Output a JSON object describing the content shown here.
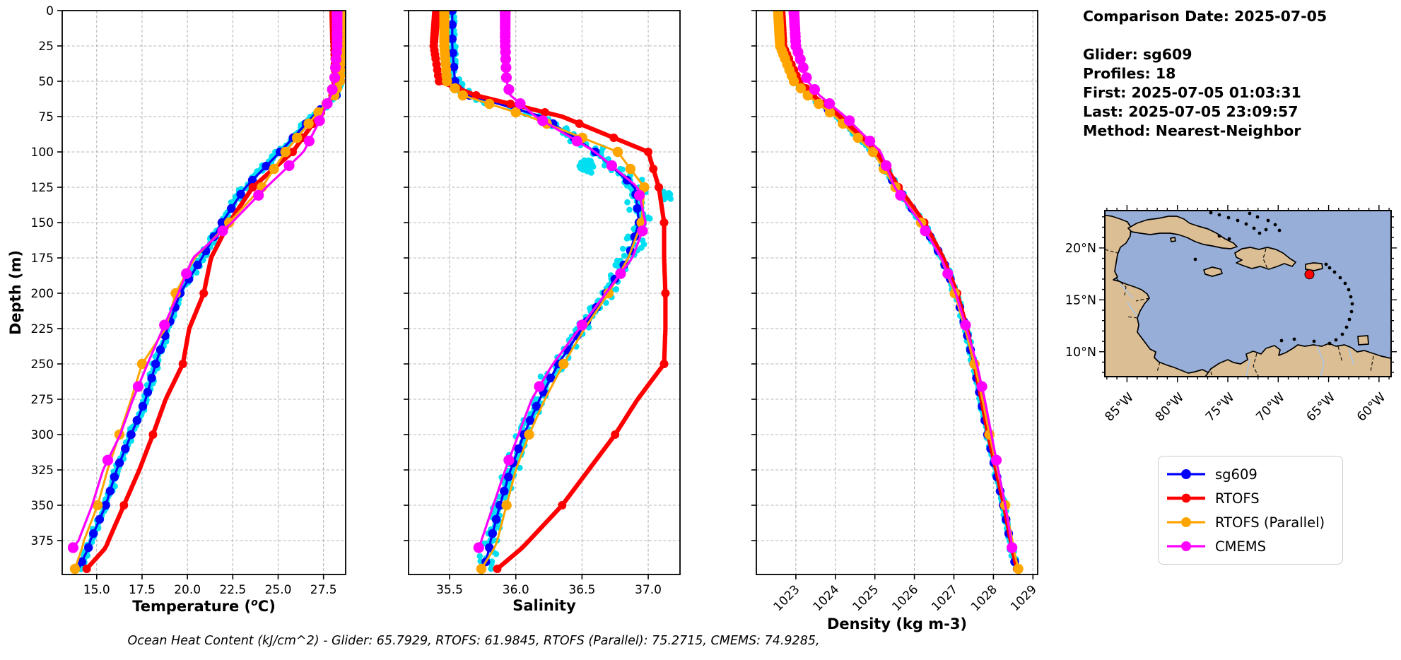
{
  "info_panel": {
    "comparison_date": "Comparison Date: 2025-07-05",
    "glider": "Glider: sg609",
    "profiles": "Profiles: 18",
    "first": "First: 2025-07-05 01:03:31",
    "last": "Last: 2025-07-05 23:09:57",
    "method": "Method: Nearest-Neighbor"
  },
  "caption": "Ocean Heat Content (kJ/cm^2) - Glider: 65.7929,  RTOFS: 61.9845,  RTOFS (Parallel): 75.2715,  CMEMS: 74.9285,",
  "axes": {
    "ylabel": "Depth (m)"
  },
  "legend": {
    "items": [
      {
        "label": "sg609",
        "color": "#0000ff"
      },
      {
        "label": "RTOFS",
        "color": "#ff0000"
      },
      {
        "label": "RTOFS (Parallel)",
        "color": "#ffa500"
      },
      {
        "label": "CMEMS",
        "color": "#ff00ff"
      }
    ]
  },
  "map": {
    "lon_tick_labels": [
      "85°W",
      "80°W",
      "75°W",
      "70°W",
      "65°W",
      "60°W"
    ],
    "lon_tick_values": [
      -85,
      -80,
      -75,
      -70,
      -65,
      -60
    ],
    "lat_tick_labels": [
      "20°N",
      "15°N",
      "10°N"
    ],
    "lat_tick_values": [
      20,
      15,
      10
    ],
    "extent": {
      "lon": [
        -87.2,
        -58.8
      ],
      "lat": [
        7.6,
        23.6
      ]
    },
    "ocean_color": "#97afd8",
    "land_color": "#dcbe94",
    "river_color": "#a9c4e4",
    "marker": {
      "lon": -66.9,
      "lat": 17.45,
      "color": "#ff0000"
    }
  },
  "chart_data": [
    {
      "type": "line",
      "panel": "temperature",
      "xlabel": "Temperature (°C)",
      "xlabel_prefix": "Temperature (",
      "xlabel_sup": "o",
      "xlabel_suffix": "C)",
      "ylabel": "Depth (m)",
      "xlim": [
        13.1,
        28.72
      ],
      "ylim": [
        0,
        399
      ],
      "xticks": [
        15.0,
        17.5,
        20.0,
        22.5,
        25.0,
        27.5
      ],
      "xtick_labels": [
        "15.0",
        "17.5",
        "20.0",
        "22.5",
        "25.0",
        "27.5"
      ],
      "depth_ticks": [
        0,
        25,
        50,
        75,
        100,
        125,
        150,
        175,
        200,
        225,
        250,
        275,
        300,
        325,
        350,
        375
      ],
      "grid": true,
      "legend_position": "outside-right",
      "depths": [
        0,
        25,
        50,
        60,
        75,
        100,
        125,
        150,
        175,
        200,
        225,
        250,
        275,
        300,
        325,
        350,
        375,
        380,
        395
      ],
      "series": [
        {
          "name": "sg609",
          "color": "#0000ff",
          "values": [
            28.55,
            28.55,
            28.45,
            28.2,
            26.9,
            25.1,
            23.2,
            21.9,
            20.8,
            19.6,
            18.9,
            18.25,
            17.7,
            16.9,
            16.1,
            15.5,
            14.65,
            14.55,
            14.0
          ]
        },
        {
          "name": "RTOFS",
          "color": "#ff0000",
          "values": [
            28.05,
            28.1,
            28.15,
            28.0,
            27.2,
            25.8,
            23.6,
            22.3,
            21.3,
            20.9,
            20.1,
            19.75,
            18.8,
            18.1,
            17.35,
            16.5,
            15.65,
            15.5,
            14.45
          ]
        },
        {
          "name": "RTOFS (Parallel)",
          "color": "#ffa500",
          "values": [
            28.45,
            28.45,
            28.4,
            28.1,
            27.0,
            25.4,
            24.1,
            22.3,
            20.4,
            19.35,
            18.8,
            17.5,
            16.9,
            16.25,
            15.6,
            15.05,
            14.3,
            14.2,
            13.8
          ]
        },
        {
          "name": "CMEMS",
          "color": "#ff00ff",
          "values": [
            28.25,
            28.25,
            28.1,
            27.9,
            27.4,
            26.4,
            24.35,
            22.45,
            20.3,
            19.5,
            18.65,
            17.8,
            17.0,
            16.3,
            15.35,
            14.75,
            14.0,
            13.7,
            null
          ]
        }
      ],
      "scatter": {
        "name": "glider raw profiles",
        "color": "#00dff2",
        "spread_depths": [
          0,
          45,
          70,
          120,
          200,
          300,
          399
        ],
        "spread": [
          0.09,
          0.12,
          0.32,
          0.3,
          0.26,
          0.22,
          0.25
        ],
        "clusters": []
      }
    },
    {
      "type": "line",
      "panel": "salinity",
      "xlabel": "Salinity",
      "ylabel": "Depth (m)",
      "xlim": [
        35.19,
        37.24
      ],
      "ylim": [
        0,
        399
      ],
      "xticks": [
        35.5,
        36.0,
        36.5,
        37.0
      ],
      "xtick_labels": [
        "35.5",
        "36.0",
        "36.5",
        "37.0"
      ],
      "depth_ticks": [
        0,
        25,
        50,
        75,
        100,
        125,
        150,
        175,
        200,
        225,
        250,
        275,
        300,
        325,
        350,
        375
      ],
      "grid": true,
      "depths": [
        0,
        25,
        50,
        60,
        75,
        100,
        125,
        150,
        175,
        200,
        225,
        250,
        275,
        300,
        325,
        350,
        375,
        380,
        395
      ],
      "series": [
        {
          "name": "sg609",
          "color": "#0000ff",
          "values": [
            35.52,
            35.52,
            35.54,
            35.65,
            36.2,
            36.6,
            36.9,
            36.93,
            36.85,
            36.68,
            36.5,
            36.32,
            36.18,
            36.06,
            35.96,
            35.88,
            35.81,
            35.8,
            35.76
          ]
        },
        {
          "name": "RTOFS",
          "color": "#ff0000",
          "values": [
            35.4,
            35.38,
            35.42,
            35.7,
            36.35,
            37.0,
            37.08,
            37.12,
            37.12,
            37.13,
            37.13,
            37.12,
            36.92,
            36.75,
            36.55,
            36.35,
            36.1,
            36.05,
            35.86
          ]
        },
        {
          "name": "RTOFS (Parallel)",
          "color": "#ffa500",
          "values": [
            35.46,
            35.46,
            35.48,
            35.6,
            36.1,
            36.77,
            36.97,
            36.95,
            36.85,
            36.7,
            36.52,
            36.36,
            36.22,
            36.1,
            36.0,
            35.93,
            35.86,
            35.84,
            35.74
          ]
        },
        {
          "name": "CMEMS",
          "color": "#ff00ff",
          "values": [
            35.92,
            35.92,
            35.93,
            35.96,
            36.15,
            36.6,
            36.92,
            36.98,
            36.88,
            36.68,
            36.48,
            36.28,
            36.12,
            36.02,
            35.92,
            35.83,
            35.74,
            35.72,
            null
          ]
        }
      ],
      "scatter": {
        "name": "glider raw profiles",
        "color": "#00dff2",
        "spread_depths": [
          0,
          45,
          70,
          120,
          200,
          300,
          399
        ],
        "spread": [
          0.05,
          0.06,
          0.12,
          0.13,
          0.1,
          0.08,
          0.08
        ],
        "clusters": [
          {
            "x": 36.55,
            "depth": 110,
            "sx": 0.1,
            "sd": 7,
            "n": 26
          },
          {
            "x": 37.13,
            "depth": 131,
            "sx": 0.05,
            "sd": 6,
            "n": 12
          }
        ]
      }
    },
    {
      "type": "line",
      "panel": "density",
      "xlabel": "Density (kg m-3)",
      "ylabel": "Depth (m)",
      "xlim": [
        1022.0,
        1029.12
      ],
      "ylim": [
        0,
        399
      ],
      "xticks": [
        1023,
        1024,
        1025,
        1026,
        1027,
        1028,
        1029
      ],
      "xtick_labels": [
        "1023",
        "1024",
        "1025",
        "1026",
        "1027",
        "1028",
        "1029"
      ],
      "xtick_rotation": 45,
      "depth_ticks": [
        0,
        25,
        50,
        75,
        100,
        125,
        150,
        175,
        200,
        225,
        250,
        275,
        300,
        325,
        350,
        375
      ],
      "grid": true,
      "depths": [
        0,
        25,
        50,
        60,
        75,
        100,
        125,
        150,
        175,
        200,
        225,
        250,
        275,
        300,
        325,
        350,
        375,
        380,
        395
      ],
      "series": [
        {
          "name": "sg609",
          "color": "#0000ff",
          "values": [
            1022.6,
            1022.65,
            1023.0,
            1023.35,
            1024.05,
            1025.0,
            1025.55,
            1026.2,
            1026.7,
            1027.05,
            1027.3,
            1027.5,
            1027.68,
            1027.85,
            1028.05,
            1028.25,
            1028.42,
            1028.45,
            1028.58
          ]
        },
        {
          "name": "RTOFS",
          "color": "#ff0000",
          "values": [
            1022.63,
            1022.68,
            1023.08,
            1023.43,
            1024.12,
            1025.05,
            1025.6,
            1026.25,
            1026.73,
            1027.08,
            1027.33,
            1027.52,
            1027.7,
            1027.87,
            1028.07,
            1028.27,
            1028.44,
            1028.47,
            1028.6
          ]
        },
        {
          "name": "RTOFS (Parallel)",
          "color": "#ffa500",
          "values": [
            1022.55,
            1022.6,
            1022.95,
            1023.3,
            1024.0,
            1024.95,
            1025.52,
            1026.17,
            1026.67,
            1027.02,
            1027.28,
            1027.52,
            1027.72,
            1027.9,
            1028.1,
            1028.3,
            1028.48,
            1028.5,
            1028.63
          ]
        },
        {
          "name": "CMEMS",
          "color": "#ff00ff",
          "values": [
            1022.95,
            1023.0,
            1023.3,
            1023.6,
            1024.25,
            1025.15,
            1025.5,
            1026.15,
            1026.68,
            1027.05,
            1027.32,
            1027.58,
            1027.78,
            1027.95,
            1028.12,
            1028.3,
            1028.45,
            1028.47,
            null
          ]
        }
      ],
      "scatter": {
        "name": "glider raw profiles",
        "color": "#00dff2",
        "spread_depths": [
          0,
          45,
          70,
          120,
          200,
          300,
          399
        ],
        "spread": [
          0.05,
          0.06,
          0.1,
          0.09,
          0.08,
          0.07,
          0.07
        ],
        "clusters": []
      }
    }
  ]
}
